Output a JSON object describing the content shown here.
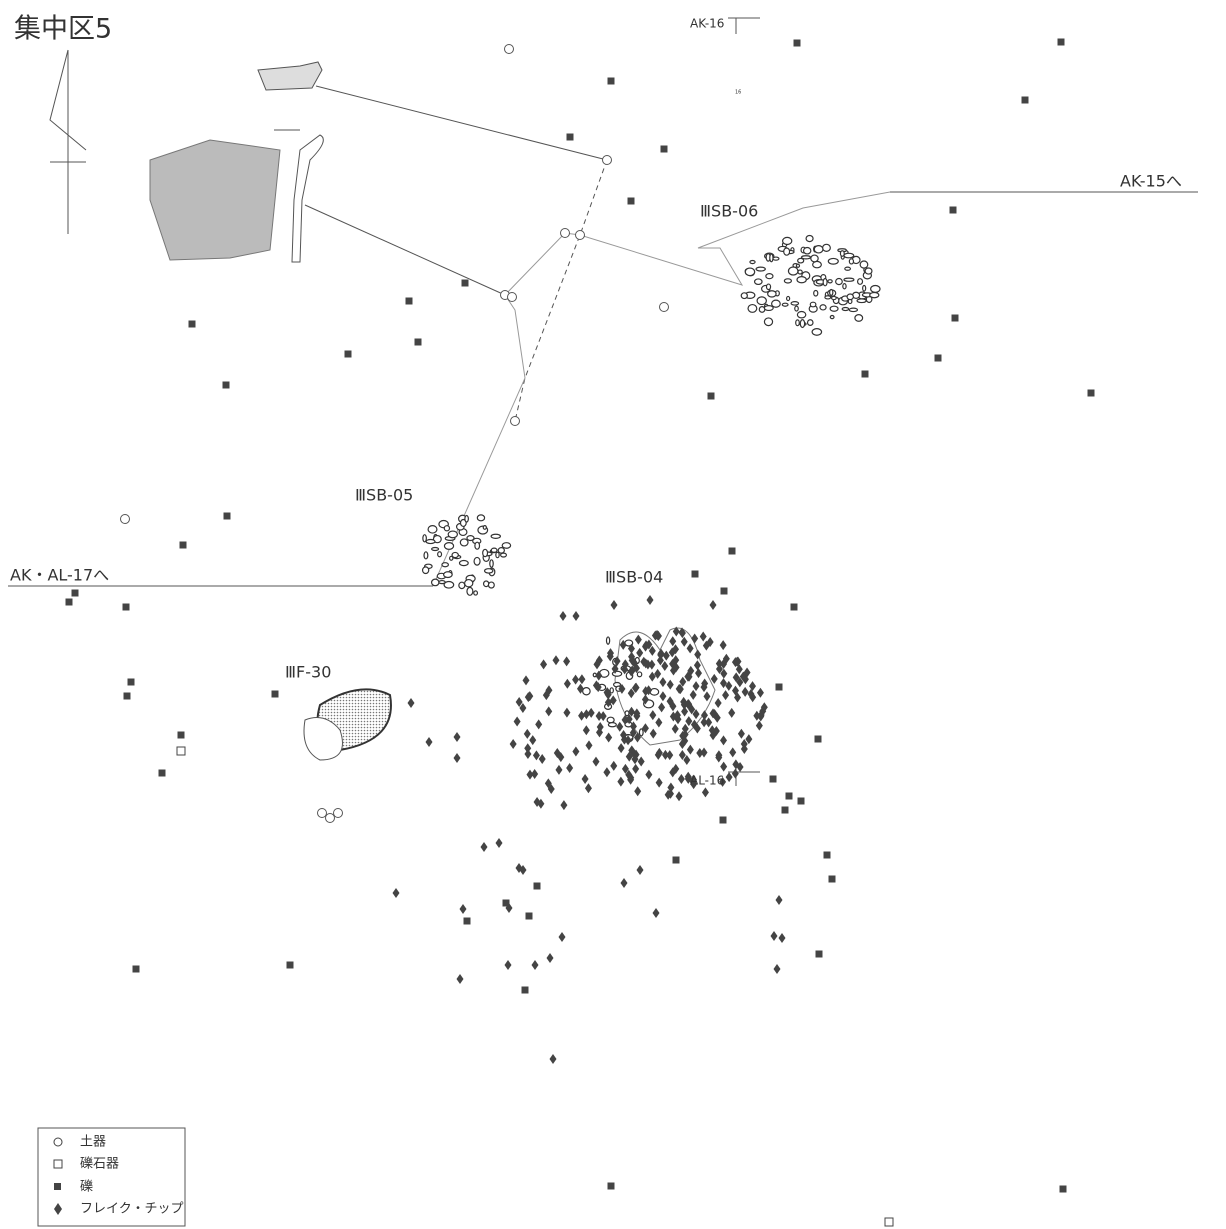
{
  "header": {
    "title": "集中区5"
  },
  "labels": {
    "ak16": "AK-16",
    "ak15": "AK-15へ",
    "sb06": "ⅢSB-06",
    "sb05": "ⅢSB-05",
    "ak17": "AK・AL-17へ",
    "sb04": "ⅢSB-04",
    "f30": "ⅢF-30",
    "al16": "AL-16",
    "small": "16"
  },
  "legend": {
    "items": [
      "土器",
      "礫石器",
      "礫",
      "フレイク・チップ"
    ]
  }
}
